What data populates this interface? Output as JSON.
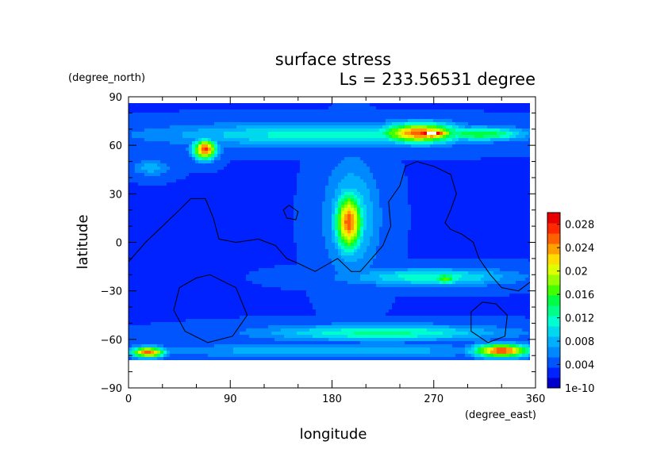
{
  "chart_data": {
    "type": "heatmap",
    "title": "surface stress",
    "subtitle": "Ls = 233.56531 degree",
    "xlabel": "longitude",
    "ylabel": "latitude",
    "x_unit": "(degree_east)",
    "y_unit": "(degree_north)",
    "xlim": [
      0,
      360
    ],
    "ylim": [
      -90,
      90
    ],
    "x_ticks": [
      "0",
      "90",
      "180",
      "270",
      "360"
    ],
    "y_ticks": [
      "90",
      "60",
      "30",
      "0",
      "−30",
      "−60",
      "−90"
    ],
    "x_tick_values": [
      0,
      90,
      180,
      270,
      360
    ],
    "y_tick_values": [
      90,
      60,
      30,
      0,
      -30,
      -60,
      -90
    ],
    "grid": false,
    "colorbar": {
      "position": "right",
      "labels": [
        "0.028",
        "0.024",
        "0.02",
        "0.016",
        "0.012",
        "0.008",
        "0.004",
        "1e-10"
      ],
      "label_values": [
        0.028,
        0.024,
        0.02,
        0.016,
        0.012,
        0.008,
        0.004,
        0
      ],
      "vmin": 0,
      "vmax": 0.03,
      "colors": [
        "#0000cc",
        "#0022ff",
        "#0055ff",
        "#0088ff",
        "#00b0ff",
        "#00d8ee",
        "#00ffd0",
        "#00ff88",
        "#00ff44",
        "#44ff00",
        "#99ff00",
        "#ddff00",
        "#ffdd00",
        "#ffa000",
        "#ff6000",
        "#ff2800",
        "#e80000"
      ]
    },
    "overflow_color": "#ffffff",
    "background_value": 0.0035,
    "features": [
      {
        "name": "north-60-band",
        "lon": [
          0,
          360
        ],
        "lat": [
          58,
          75
        ],
        "value": 0.012
      },
      {
        "name": "north-60-band-east",
        "lon": [
          260,
          360
        ],
        "lat": [
          62,
          72
        ],
        "value": 0.016
      },
      {
        "name": "north-hotspot-west",
        "lon": [
          55,
          80
        ],
        "lat": [
          50,
          65
        ],
        "value": 0.027
      },
      {
        "name": "north-hotspot-east",
        "lon": [
          215,
          300
        ],
        "lat": [
          60,
          75
        ],
        "value": 0.026
      },
      {
        "name": "north-peak-east",
        "lon": [
          245,
          290
        ],
        "lat": [
          64,
          70
        ],
        "value": 0.033
      },
      {
        "name": "equatorial-streak",
        "lon": [
          170,
          225
        ],
        "lat": [
          -25,
          55
        ],
        "value": 0.011
      },
      {
        "name": "equatorial-core",
        "lon": [
          180,
          210
        ],
        "lat": [
          -10,
          35
        ],
        "value": 0.026
      },
      {
        "name": "south-30-band",
        "lon": [
          180,
          355
        ],
        "lat": [
          -28,
          -15
        ],
        "value": 0.012
      },
      {
        "name": "south-30-spot",
        "lon": [
          265,
          295
        ],
        "lat": [
          -27,
          -18
        ],
        "value": 0.017
      },
      {
        "name": "south-60-band",
        "lon": [
          100,
          350
        ],
        "lat": [
          -62,
          -50
        ],
        "value": 0.013
      },
      {
        "name": "south-70-band",
        "lon": [
          0,
          360
        ],
        "lat": [
          -72,
          -62
        ],
        "value": 0.009
      },
      {
        "name": "south-hotspot-west",
        "lon": [
          0,
          35
        ],
        "lat": [
          -72,
          -64
        ],
        "value": 0.026
      },
      {
        "name": "south-hotspot-east",
        "lon": [
          300,
          360
        ],
        "lat": [
          -72,
          -62
        ],
        "value": 0.027
      },
      {
        "name": "north-mid-patch",
        "lon": [
          0,
          40
        ],
        "lat": [
          40,
          52
        ],
        "value": 0.008
      }
    ],
    "contours": [
      [
        [
          0,
          -12
        ],
        [
          15,
          0
        ],
        [
          30,
          10
        ],
        [
          45,
          20
        ],
        [
          55,
          27
        ],
        [
          68,
          27
        ],
        [
          75,
          15
        ],
        [
          80,
          2
        ],
        [
          95,
          0
        ],
        [
          115,
          2
        ],
        [
          130,
          -2
        ],
        [
          140,
          -10
        ],
        [
          150,
          -13
        ],
        [
          165,
          -18
        ],
        [
          175,
          -14
        ],
        [
          185,
          -10
        ],
        [
          197,
          -18
        ],
        [
          205,
          -18
        ],
        [
          215,
          -10
        ],
        [
          225,
          -2
        ],
        [
          232,
          10
        ],
        [
          230,
          25
        ],
        [
          240,
          35
        ],
        [
          245,
          47
        ],
        [
          255,
          50
        ],
        [
          270,
          47
        ],
        [
          285,
          42
        ],
        [
          290,
          30
        ],
        [
          285,
          20
        ],
        [
          280,
          12
        ],
        [
          285,
          8
        ],
        [
          295,
          5
        ],
        [
          305,
          0
        ],
        [
          310,
          -10
        ],
        [
          320,
          -20
        ],
        [
          330,
          -28
        ],
        [
          345,
          -30
        ],
        [
          360,
          -22
        ]
      ],
      [
        [
          72,
          -20
        ],
        [
          95,
          -28
        ],
        [
          105,
          -45
        ],
        [
          92,
          -58
        ],
        [
          70,
          -62
        ],
        [
          50,
          -55
        ],
        [
          40,
          -42
        ],
        [
          45,
          -28
        ],
        [
          60,
          -22
        ],
        [
          72,
          -20
        ]
      ],
      [
        [
          325,
          -38
        ],
        [
          335,
          -45
        ],
        [
          333,
          -58
        ],
        [
          318,
          -62
        ],
        [
          303,
          -55
        ],
        [
          303,
          -43
        ],
        [
          313,
          -37
        ],
        [
          325,
          -38
        ]
      ],
      [
        [
          142,
          23
        ],
        [
          150,
          19
        ],
        [
          148,
          14
        ],
        [
          140,
          15
        ],
        [
          137,
          20
        ],
        [
          142,
          23
        ]
      ]
    ]
  }
}
